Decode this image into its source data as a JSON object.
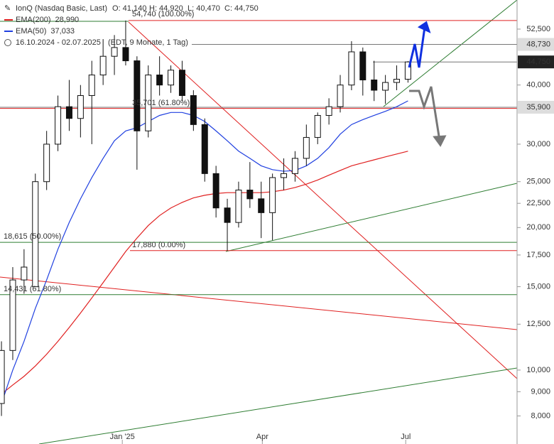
{
  "chart_data": {
    "type": "candlestick",
    "title": "IonQ (Nasdaq Basic, Last)",
    "header_stats": [
      "O: 41,140",
      "H: 44,920",
      "L: 40,470",
      "C: 44,750"
    ],
    "date_range": "16.10.2024 - 02.07.2025",
    "period": "(EDT, 9 Monate, 1 Tag)",
    "x": [
      0,
      1,
      2,
      3,
      4,
      5,
      6,
      7,
      8,
      9,
      10,
      11,
      12,
      13,
      14,
      15,
      16,
      17,
      18,
      19,
      20,
      21,
      22,
      23,
      24,
      25,
      26,
      27,
      28,
      29,
      30,
      31,
      32,
      33,
      34,
      35,
      36
    ],
    "open": [
      8500,
      11000,
      15500,
      15000,
      25000,
      30000,
      36000,
      34000,
      38000,
      42000,
      46000,
      48000,
      45000,
      32000,
      42000,
      40000,
      43000,
      38000,
      33000,
      26000,
      22000,
      20500,
      24000,
      23000,
      21500,
      25500,
      26000,
      28000,
      31000,
      34500,
      36000,
      40000,
      47000,
      41000,
      39000,
      40500,
      41140
    ],
    "high": [
      11500,
      16500,
      18000,
      26000,
      32000,
      38000,
      41000,
      40000,
      45000,
      50000,
      51000,
      54740,
      46000,
      44000,
      46000,
      44000,
      45000,
      39000,
      34000,
      27000,
      23000,
      25000,
      27500,
      25000,
      26000,
      28000,
      29000,
      33000,
      35000,
      37500,
      42000,
      49500,
      48000,
      45000,
      42000,
      44000,
      44920
    ],
    "low": [
      8000,
      10500,
      14500,
      15000,
      24000,
      29000,
      32000,
      31000,
      30000,
      40000,
      42000,
      44000,
      26500,
      31000,
      38000,
      38500,
      37000,
      32000,
      25000,
      21000,
      17880,
      20000,
      22000,
      19000,
      18800,
      24000,
      25000,
      27000,
      30000,
      33000,
      35000,
      39000,
      38000,
      37000,
      36500,
      39000,
      40470
    ],
    "close": [
      11000,
      15500,
      16500,
      25000,
      30000,
      36000,
      34000,
      38000,
      42000,
      46000,
      48000,
      45000,
      32000,
      42000,
      40000,
      43000,
      38000,
      33000,
      26000,
      22000,
      20500,
      24000,
      23000,
      21500,
      25500,
      26000,
      28000,
      31000,
      34500,
      36000,
      40000,
      47000,
      41000,
      39000,
      40500,
      41140,
      44750
    ],
    "series": [
      {
        "name": "EMA(200)",
        "color": "#e02020",
        "value_label": "28,990",
        "values": [
          8900,
          9300,
          9700,
          10200,
          10800,
          11500,
          12300,
          13200,
          14200,
          15300,
          16500,
          17800,
          19000,
          20200,
          21200,
          22000,
          22600,
          23100,
          23400,
          23600,
          23700,
          23700,
          23700,
          23700,
          23800,
          24000,
          24300,
          24700,
          25200,
          25800,
          26400,
          27000,
          27400,
          27800,
          28200,
          28600,
          28990
        ]
      },
      {
        "name": "EMA(50)",
        "color": "#2040e0",
        "value_label": "37,033",
        "values": [
          8500,
          10000,
          11500,
          13500,
          15500,
          18000,
          20500,
          23000,
          25500,
          28000,
          30500,
          32000,
          32500,
          33500,
          34500,
          35000,
          35000,
          34500,
          33500,
          32000,
          30500,
          29000,
          28000,
          27000,
          26500,
          26300,
          26400,
          27000,
          28000,
          29500,
          31500,
          33000,
          33800,
          34500,
          35200,
          36000,
          37033
        ]
      }
    ],
    "fib_levels": [
      {
        "value": 54740,
        "label": "54,740 (100.00%)",
        "color": "#e02020"
      },
      {
        "value": 35701,
        "label": "35,701 (61.80%)",
        "color": "#e02020"
      },
      {
        "value": 17880,
        "label": "17,880 (0.00%)",
        "color": "#e02020"
      },
      {
        "value": 18615,
        "label": "18,615 (50.00%)",
        "color": "#2e7d32"
      },
      {
        "value": 14431,
        "label": "14,431 (61.80%)",
        "color": "#2e7d32"
      }
    ],
    "price_labels": [
      {
        "value": 48730,
        "label": "48,730",
        "dark": false
      },
      {
        "value": 44750,
        "label": "44,750",
        "dark": true
      },
      {
        "value": 35900,
        "label": "35,900",
        "dark": false
      }
    ],
    "log_scale": true,
    "xlim": [
      -0.13,
      45.66
    ],
    "xticks": [
      {
        "value": 10.7,
        "label": "Jan '25"
      },
      {
        "value": 23.1,
        "label": "Apr"
      },
      {
        "value": 35.8,
        "label": "Jul"
      }
    ],
    "ylim": [
      6980,
      60480
    ],
    "yticks": [
      {
        "value": 52500,
        "label": "52,500"
      },
      {
        "value": 40000,
        "label": "40,000"
      },
      {
        "value": 30000,
        "label": "30,000"
      },
      {
        "value": 25000,
        "label": "25,000"
      },
      {
        "value": 22500,
        "label": "22,500"
      },
      {
        "value": 20000,
        "label": "20,000"
      },
      {
        "value": 17500,
        "label": "17,500"
      },
      {
        "value": 15000,
        "label": "15,000"
      },
      {
        "value": 12500,
        "label": "12,500"
      },
      {
        "value": 10000,
        "label": "10,000"
      },
      {
        "value": 9000,
        "label": "9,000"
      },
      {
        "value": 8000,
        "label": "8,000"
      }
    ]
  }
}
